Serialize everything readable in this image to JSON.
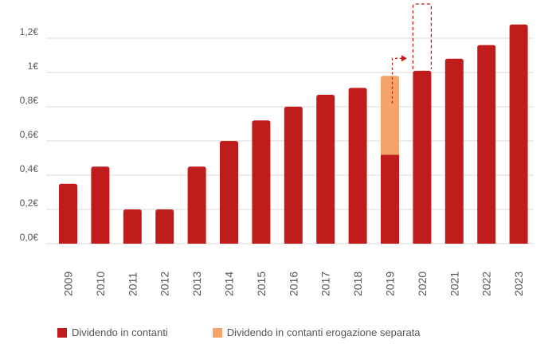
{
  "chart_data": {
    "type": "bar",
    "stacked": true,
    "categories": [
      "2009",
      "2010",
      "2011",
      "2012",
      "2013",
      "2014",
      "2015",
      "2016",
      "2017",
      "2018",
      "2019",
      "2020",
      "2021",
      "2022",
      "2023"
    ],
    "series": [
      {
        "name": "Dividendo in contanti",
        "color": "#c01c1c",
        "values": [
          0.35,
          0.45,
          0.2,
          0.2,
          0.45,
          0.6,
          0.72,
          0.8,
          0.87,
          0.91,
          0.52,
          1.01,
          1.08,
          1.16,
          1.28
        ]
      },
      {
        "name": "Dividendo in contanti erogazione separata",
        "color": "#f4a36b",
        "values": [
          0,
          0,
          0,
          0,
          0,
          0,
          0,
          0,
          0,
          0,
          0.46,
          0,
          0,
          0,
          0
        ]
      }
    ],
    "yticks": [
      "0,0€",
      "0,2€",
      "0,4€",
      "0,6€",
      "0,8€",
      "1€",
      "1,2€"
    ],
    "ylim": [
      0,
      1.4
    ],
    "grid": true,
    "legend": "bottom",
    "annotation": "dashed arrow from 2019 separate payout toward 2020"
  }
}
